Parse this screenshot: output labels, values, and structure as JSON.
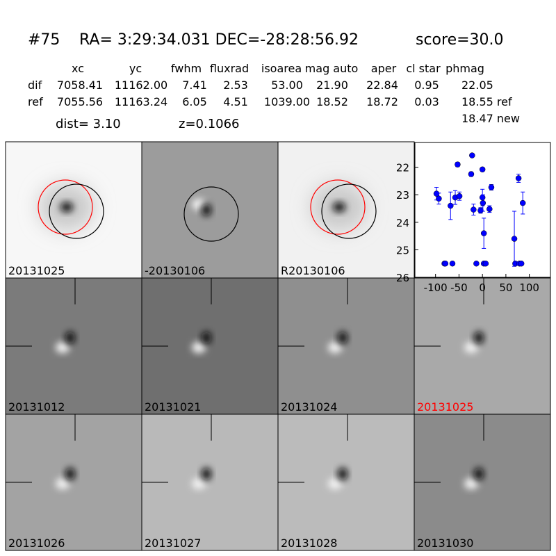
{
  "header": {
    "id": "#75",
    "coords": "RA= 3:29:34.031 DEC=-28:28:56.92",
    "score": "score=30.0"
  },
  "table": {
    "columns": [
      "xc",
      "yc",
      "fwhm",
      "fluxrad",
      "isoarea",
      "mag auto",
      "aper",
      "cl star",
      "phmag"
    ],
    "rows": [
      [
        "dif",
        "7058.41",
        "11162.00",
        "7.41",
        "2.53",
        "53.00",
        "21.90",
        "22.84",
        "0.95",
        "22.05"
      ],
      [
        "ref",
        "7055.56",
        "11163.24",
        "6.05",
        "4.51",
        "1039.00",
        "18.52",
        "18.72",
        "0.03",
        "18.55 ref"
      ]
    ],
    "extra": "18.47 new"
  },
  "dist": "dist=  3.10",
  "z": "z=0.1066",
  "panels": [
    "20131025",
    "-20130106",
    "R20130106",
    "20131012",
    "20131021",
    "20131024",
    "20131025",
    "20131026",
    "20131027",
    "20131028",
    "20131030"
  ],
  "chart_data": {
    "type": "scatter",
    "color": "#0000ff",
    "x": [
      -98,
      -93,
      -81,
      -79,
      -64,
      -68,
      -58,
      -53,
      -49,
      -22,
      -24,
      -19,
      -13,
      -4,
      0,
      0,
      1,
      3,
      3,
      7,
      15,
      19,
      68,
      70,
      77,
      79,
      83,
      86
    ],
    "values": [
      22.96,
      23.14,
      25.5,
      25.5,
      25.5,
      23.4,
      23.1,
      21.9,
      23.05,
      21.57,
      22.25,
      23.54,
      25.5,
      23.57,
      22.08,
      23.1,
      23.3,
      24.4,
      25.5,
      25.5,
      23.52,
      22.73,
      24.6,
      25.5,
      22.4,
      25.5,
      25.5,
      23.3
    ],
    "errors": [
      0.23,
      0.2,
      null,
      null,
      null,
      0.5,
      0.25,
      0.08,
      0.15,
      0.05,
      0.08,
      0.2,
      null,
      0.1,
      0.07,
      0.3,
      0.3,
      0.55,
      null,
      null,
      0.12,
      0.1,
      1.0,
      null,
      0.15,
      null,
      null,
      0.4
    ],
    "xlim": [
      -144,
      145
    ],
    "ylim": [
      26,
      21.1
    ],
    "xticks": [
      -100,
      -50,
      0,
      50,
      100
    ],
    "yticks": [
      22,
      23,
      24,
      25,
      26
    ]
  }
}
